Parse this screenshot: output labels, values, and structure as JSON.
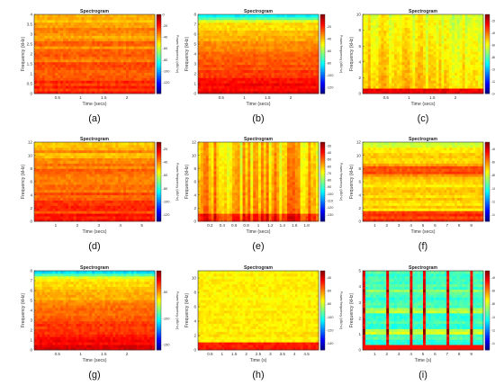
{
  "chart_data": [
    {
      "id": "a",
      "type": "heatmap",
      "panel_label": "(a)",
      "title": "Spectrogram",
      "xlabel": "Time (secs)",
      "ylabel": "Frequency (kHz)",
      "colorbar_label": "Power/frequency (dB/Hz)",
      "xlim": [
        0,
        2.6
      ],
      "x_ticks": [
        "0.5",
        "1",
        "1.5",
        "2"
      ],
      "x_tick_values": [
        0.5,
        1,
        1.5,
        2
      ],
      "ylim": [
        0,
        4
      ],
      "y_ticks": [
        "0",
        "0.5",
        "1",
        "1.5",
        "2",
        "2.5",
        "3",
        "3.5",
        "4"
      ],
      "y_tick_values": [
        0,
        0.5,
        1,
        1.5,
        2,
        2.5,
        3,
        3.5,
        4
      ],
      "clim": [
        -140,
        0
      ],
      "cbar_ticks": [
        "0",
        "-20",
        "-40",
        "-60",
        "-80",
        "-100",
        "-120"
      ],
      "cbar_tick_values": [
        0,
        -20,
        -40,
        -60,
        -80,
        -100,
        -120
      ],
      "pattern": "horizontal-bands"
    },
    {
      "id": "b",
      "type": "heatmap",
      "panel_label": "(b)",
      "title": "Spectrogram",
      "xlabel": "Time (secs)",
      "ylabel": "Frequency (kHz)",
      "colorbar_label": "Power/frequency (dB/Hz)",
      "xlim": [
        0,
        2.6
      ],
      "x_ticks": [
        "0.5",
        "1",
        "1.5",
        "2"
      ],
      "x_tick_values": [
        0.5,
        1,
        1.5,
        2
      ],
      "ylim": [
        0,
        8
      ],
      "y_ticks": [
        "0",
        "1",
        "2",
        "3",
        "4",
        "5",
        "6",
        "7",
        "8"
      ],
      "y_tick_values": [
        0,
        1,
        2,
        3,
        4,
        5,
        6,
        7,
        8
      ],
      "clim": [
        -130,
        0
      ],
      "cbar_ticks": [
        "-20",
        "-40",
        "-60",
        "-80",
        "-100",
        "-120"
      ],
      "cbar_tick_values": [
        -20,
        -40,
        -60,
        -80,
        -100,
        -120
      ],
      "pattern": "smooth-gradient"
    },
    {
      "id": "c",
      "type": "heatmap",
      "panel_label": "(c)",
      "title": "Spectrogram",
      "xlabel": "Time (secs)",
      "ylabel": "Frequency (kHz)",
      "colorbar_label": "Power/frequency (dB/Hz)",
      "xlim": [
        0,
        2.6
      ],
      "x_ticks": [
        "0.5",
        "1",
        "1.5",
        "2"
      ],
      "x_tick_values": [
        0.5,
        1,
        1.5,
        2
      ],
      "ylim": [
        0,
        10
      ],
      "y_ticks": [
        "0",
        "2",
        "4",
        "6",
        "8",
        "10"
      ],
      "y_tick_values": [
        0,
        2,
        4,
        6,
        8,
        10
      ],
      "clim": [
        -140,
        -10
      ],
      "cbar_ticks": [
        "-20",
        "-40",
        "-60",
        "-80",
        "-100",
        "-120",
        "-140"
      ],
      "cbar_tick_values": [
        -20,
        -40,
        -60,
        -80,
        -100,
        -120,
        -140
      ],
      "pattern": "vertical-streaks"
    },
    {
      "id": "d",
      "type": "heatmap",
      "panel_label": "(d)",
      "title": "Spectrogram",
      "xlabel": "Time (secs)",
      "ylabel": "Frequency (kHz)",
      "colorbar_label": "Power/frequency (dB/Hz)",
      "xlim": [
        0,
        5.6
      ],
      "x_ticks": [
        "1",
        "2",
        "3",
        "4",
        "5"
      ],
      "x_tick_values": [
        1,
        2,
        3,
        4,
        5
      ],
      "ylim": [
        0,
        12
      ],
      "y_ticks": [
        "0",
        "2",
        "4",
        "6",
        "8",
        "10",
        "12"
      ],
      "y_tick_values": [
        0,
        2,
        4,
        6,
        8,
        10,
        12
      ],
      "clim": [
        -130,
        -10
      ],
      "cbar_ticks": [
        "-20",
        "-40",
        "-60",
        "-80",
        "-100",
        "-120"
      ],
      "cbar_tick_values": [
        -20,
        -40,
        -60,
        -80,
        -100,
        -120
      ],
      "pattern": "horizontal-bands"
    },
    {
      "id": "e",
      "type": "heatmap",
      "panel_label": "(e)",
      "title": "Spectrogram",
      "xlabel": "Time (secs)",
      "ylabel": "Frequency (kHz)",
      "colorbar_label": "Power/frequency (dB/Hz)",
      "xlim": [
        0,
        2
      ],
      "x_ticks": [
        "0.2",
        "0.4",
        "0.6",
        "0.8",
        "1",
        "1.2",
        "1.4",
        "1.6",
        "1.8"
      ],
      "x_tick_values": [
        0.2,
        0.4,
        0.6,
        0.8,
        1,
        1.2,
        1.4,
        1.6,
        1.8
      ],
      "ylim": [
        0,
        12
      ],
      "y_ticks": [
        "0",
        "2",
        "4",
        "6",
        "8",
        "10",
        "12"
      ],
      "y_tick_values": [
        0,
        2,
        4,
        6,
        8,
        10,
        12
      ],
      "clim": [
        -140,
        -25
      ],
      "cbar_ticks": [
        "-30",
        "-40",
        "-50",
        "-60",
        "-70",
        "-80",
        "-90",
        "-100",
        "-110",
        "-120",
        "-130"
      ],
      "cbar_tick_values": [
        -30,
        -40,
        -50,
        -60,
        -70,
        -80,
        -90,
        -100,
        -110,
        -120,
        -130
      ],
      "pattern": "vertical-streaks-strong"
    },
    {
      "id": "f",
      "type": "heatmap",
      "panel_label": "(f)",
      "title": "Spectrogram",
      "xlabel": "Time (secs)",
      "ylabel": "Frequency (kHz)",
      "colorbar_label": "Power/frequency (dB/Hz)",
      "xlim": [
        0,
        10
      ],
      "x_ticks": [
        "1",
        "2",
        "3",
        "4",
        "5",
        "6",
        "7",
        "8",
        "9"
      ],
      "x_tick_values": [
        1,
        2,
        3,
        4,
        5,
        6,
        7,
        8,
        9
      ],
      "ylim": [
        0,
        12
      ],
      "y_ticks": [
        "0",
        "2",
        "4",
        "6",
        "8",
        "10",
        "12"
      ],
      "y_tick_values": [
        0,
        2,
        4,
        6,
        8,
        10,
        12
      ],
      "clim": [
        -150,
        -30
      ],
      "cbar_ticks": [
        "-40",
        "-60",
        "-80",
        "-100",
        "-120",
        "-140"
      ],
      "cbar_tick_values": [
        -40,
        -60,
        -80,
        -100,
        -120,
        -140
      ],
      "pattern": "mid-band"
    },
    {
      "id": "g",
      "type": "heatmap",
      "panel_label": "(g)",
      "title": "Spectrogram",
      "xlabel": "Time (secs)",
      "ylabel": "Frequency (kHz)",
      "colorbar_label": "Power/frequency (dB/Hz)",
      "xlim": [
        0,
        2.6
      ],
      "x_ticks": [
        "0.5",
        "1",
        "1.5",
        "2"
      ],
      "x_tick_values": [
        0.5,
        1,
        1.5,
        2
      ],
      "ylim": [
        0,
        8
      ],
      "y_ticks": [
        "0",
        "1",
        "2",
        "3",
        "4",
        "5",
        "6",
        "7",
        "8"
      ],
      "y_tick_values": [
        0,
        1,
        2,
        3,
        4,
        5,
        6,
        7,
        8
      ],
      "clim": [
        -160,
        -10
      ],
      "cbar_ticks": [
        "-50",
        "-100",
        "-150"
      ],
      "cbar_tick_values": [
        -50,
        -100,
        -150
      ],
      "pattern": "smooth-gradient"
    },
    {
      "id": "h",
      "type": "heatmap",
      "panel_label": "(h)",
      "title": "Spectrogram",
      "xlabel": "Time (s)",
      "ylabel": "Frequency (kHz)",
      "colorbar_label": "Power/frequency (dB/Hz)",
      "xlim": [
        0,
        5
      ],
      "x_ticks": [
        "0.5",
        "1",
        "1.5",
        "2",
        "2.5",
        "3",
        "3.5",
        "4",
        "4.5"
      ],
      "x_tick_values": [
        0.5,
        1,
        1.5,
        2,
        2.5,
        3,
        3.5,
        4,
        4.5
      ],
      "ylim": [
        0,
        11
      ],
      "y_ticks": [
        "0",
        "2",
        "4",
        "6",
        "8",
        "10"
      ],
      "y_tick_values": [
        0,
        2,
        4,
        6,
        8,
        10
      ],
      "clim": [
        -150,
        -30
      ],
      "cbar_ticks": [
        "-40",
        "-60",
        "-80",
        "-100",
        "-120",
        "-140"
      ],
      "cbar_tick_values": [
        -40,
        -60,
        -80,
        -100,
        -120,
        -140
      ],
      "pattern": "uniform-noise"
    },
    {
      "id": "i",
      "type": "heatmap",
      "panel_label": "(i)",
      "title": "Spectrogram",
      "xlabel": "Time (s)",
      "ylabel": "Frequency (kHz)",
      "colorbar_label": "Power/frequency (dB/Hz)",
      "xlim": [
        0,
        10
      ],
      "x_ticks": [
        "1",
        "2",
        "3",
        "4",
        "5",
        "6",
        "7",
        "8",
        "9"
      ],
      "x_tick_values": [
        1,
        2,
        3,
        4,
        5,
        6,
        7,
        8,
        9
      ],
      "ylim": [
        0,
        5
      ],
      "y_ticks": [
        "0",
        "1",
        "2",
        "3",
        "4",
        "5"
      ],
      "y_tick_values": [
        0,
        1,
        2,
        3,
        4,
        5
      ],
      "clim": [
        -150,
        -30
      ],
      "cbar_ticks": [
        "-40",
        "-60",
        "-80",
        "-100",
        "-120",
        "-140"
      ],
      "cbar_tick_values": [
        -40,
        -60,
        -80,
        -100,
        -120,
        -140
      ],
      "pattern": "periodic-pulses"
    }
  ]
}
